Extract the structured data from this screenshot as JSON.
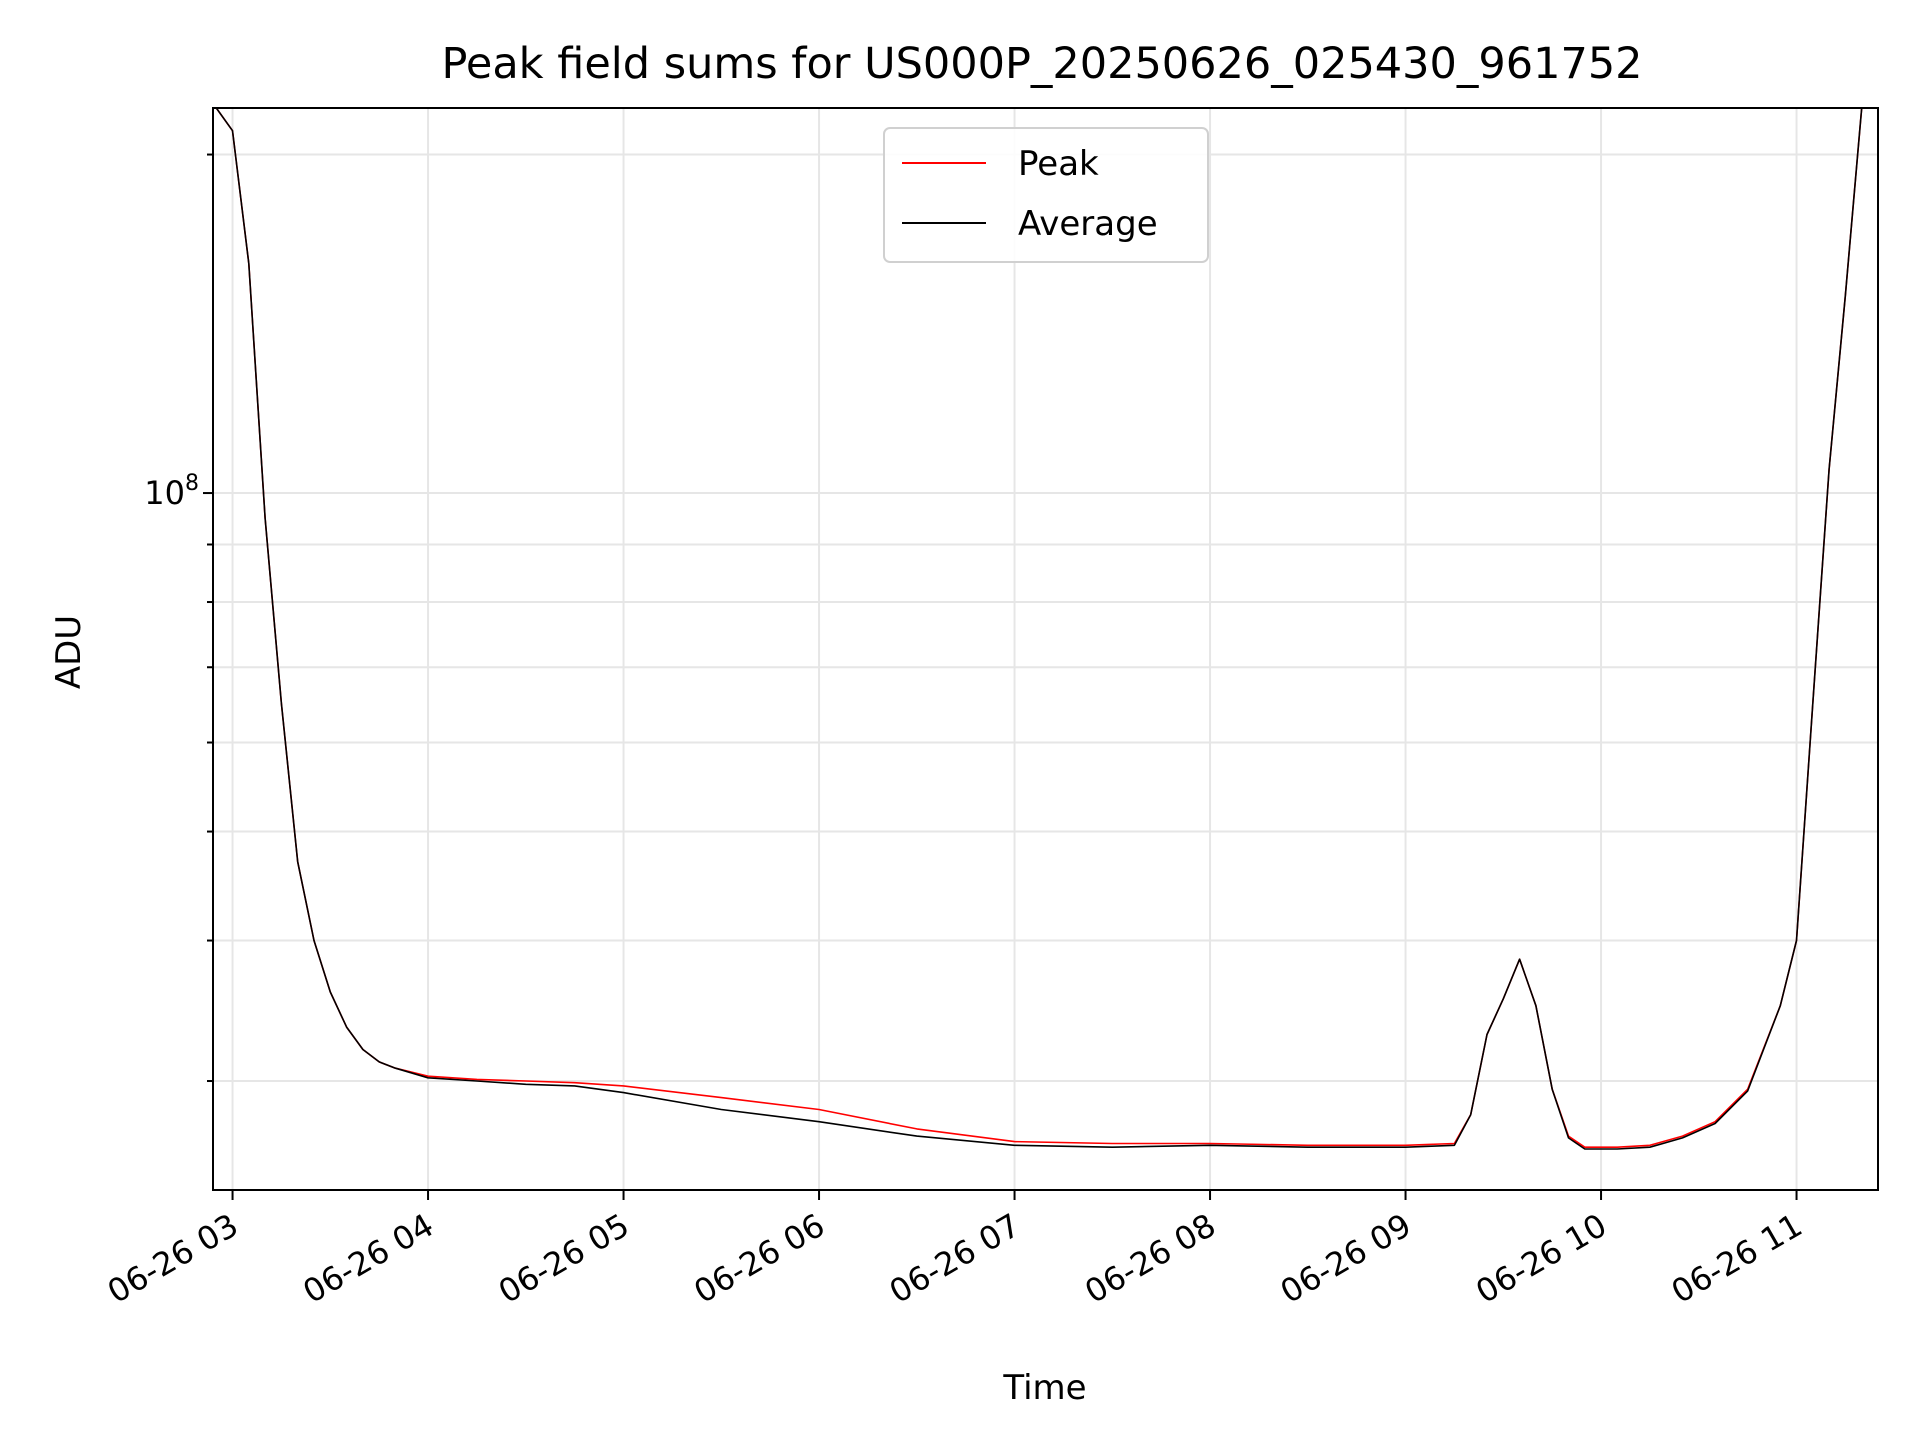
{
  "chart_data": {
    "type": "line",
    "title": "Peak field sums for US000P_20250626_025430_961752",
    "xlabel": "Time",
    "ylabel": "ADU",
    "y_scale": "log",
    "y_tick_labels": [
      {
        "base": "10",
        "exp": "8",
        "value": 100000000
      }
    ],
    "ylim": [
      24000000,
      220000000
    ],
    "x_ticks": [
      {
        "label": "06-26 03",
        "value": "2025-06-26T03:00"
      },
      {
        "label": "06-26 04",
        "value": "2025-06-26T04:00"
      },
      {
        "label": "06-26 05",
        "value": "2025-06-26T05:00"
      },
      {
        "label": "06-26 06",
        "value": "2025-06-26T06:00"
      },
      {
        "label": "06-26 07",
        "value": "2025-06-26T07:00"
      },
      {
        "label": "06-26 08",
        "value": "2025-06-26T08:00"
      },
      {
        "label": "06-26 09",
        "value": "2025-06-26T09:00"
      },
      {
        "label": "06-26 10",
        "value": "2025-06-26T10:00"
      },
      {
        "label": "06-26 11",
        "value": "2025-06-26T11:00"
      }
    ],
    "xlim": [
      "2025-06-26T02:54",
      "2025-06-26T11:25"
    ],
    "grid": true,
    "legend_position": "top-center",
    "series": [
      {
        "name": "Peak",
        "color": "#ff0000",
        "x": [
          "2025-06-26T02:55",
          "2025-06-26T03:00",
          "2025-06-26T03:05",
          "2025-06-26T03:10",
          "2025-06-26T03:15",
          "2025-06-26T03:20",
          "2025-06-26T03:25",
          "2025-06-26T03:30",
          "2025-06-26T03:35",
          "2025-06-26T03:40",
          "2025-06-26T03:45",
          "2025-06-26T03:50",
          "2025-06-26T04:00",
          "2025-06-26T04:15",
          "2025-06-26T04:30",
          "2025-06-26T04:45",
          "2025-06-26T05:00",
          "2025-06-26T05:30",
          "2025-06-26T06:00",
          "2025-06-26T06:30",
          "2025-06-26T07:00",
          "2025-06-26T07:30",
          "2025-06-26T08:00",
          "2025-06-26T08:30",
          "2025-06-26T09:00",
          "2025-06-26T09:15",
          "2025-06-26T09:20",
          "2025-06-26T09:25",
          "2025-06-26T09:30",
          "2025-06-26T09:35",
          "2025-06-26T09:40",
          "2025-06-26T09:45",
          "2025-06-26T09:50",
          "2025-06-26T09:55",
          "2025-06-26T10:05",
          "2025-06-26T10:15",
          "2025-06-26T10:25",
          "2025-06-26T10:35",
          "2025-06-26T10:45",
          "2025-06-26T10:55",
          "2025-06-26T11:00",
          "2025-06-26T11:05",
          "2025-06-26T11:10",
          "2025-06-26T11:15",
          "2025-06-26T11:20"
        ],
        "y": [
          220000000,
          210000000,
          160000000,
          95000000,
          65000000,
          47000000,
          40000000,
          36000000,
          33500000,
          32000000,
          31200000,
          30800000,
          30300000,
          30100000,
          30000000,
          29900000,
          29700000,
          29000000,
          28300000,
          27200000,
          26500000,
          26400000,
          26400000,
          26300000,
          26300000,
          26400000,
          28000000,
          33000000,
          35500000,
          38500000,
          35000000,
          29500000,
          26800000,
          26200000,
          26200000,
          26300000,
          26800000,
          27600000,
          29500000,
          35000000,
          40000000,
          65000000,
          105000000,
          150000000,
          220000000
        ]
      },
      {
        "name": "Average",
        "color": "#000000",
        "x": [
          "2025-06-26T02:55",
          "2025-06-26T03:00",
          "2025-06-26T03:05",
          "2025-06-26T03:10",
          "2025-06-26T03:15",
          "2025-06-26T03:20",
          "2025-06-26T03:25",
          "2025-06-26T03:30",
          "2025-06-26T03:35",
          "2025-06-26T03:40",
          "2025-06-26T03:45",
          "2025-06-26T03:50",
          "2025-06-26T04:00",
          "2025-06-26T04:15",
          "2025-06-26T04:30",
          "2025-06-26T04:45",
          "2025-06-26T05:00",
          "2025-06-26T05:30",
          "2025-06-26T06:00",
          "2025-06-26T06:30",
          "2025-06-26T07:00",
          "2025-06-26T07:30",
          "2025-06-26T08:00",
          "2025-06-26T08:30",
          "2025-06-26T09:00",
          "2025-06-26T09:15",
          "2025-06-26T09:20",
          "2025-06-26T09:25",
          "2025-06-26T09:30",
          "2025-06-26T09:35",
          "2025-06-26T09:40",
          "2025-06-26T09:45",
          "2025-06-26T09:50",
          "2025-06-26T09:55",
          "2025-06-26T10:05",
          "2025-06-26T10:15",
          "2025-06-26T10:25",
          "2025-06-26T10:35",
          "2025-06-26T10:45",
          "2025-06-26T10:55",
          "2025-06-26T11:00",
          "2025-06-26T11:05",
          "2025-06-26T11:10",
          "2025-06-26T11:15",
          "2025-06-26T11:20"
        ],
        "y": [
          220000000,
          210000000,
          160000000,
          95000000,
          65000000,
          47000000,
          40000000,
          36000000,
          33500000,
          32000000,
          31200000,
          30800000,
          30200000,
          30000000,
          29800000,
          29700000,
          29300000,
          28300000,
          27600000,
          26800000,
          26300000,
          26200000,
          26300000,
          26200000,
          26200000,
          26300000,
          28000000,
          33000000,
          35500000,
          38500000,
          35000000,
          29500000,
          26700000,
          26100000,
          26100000,
          26200000,
          26700000,
          27500000,
          29400000,
          35000000,
          40000000,
          65000000,
          105000000,
          150000000,
          220000000
        ]
      }
    ]
  }
}
